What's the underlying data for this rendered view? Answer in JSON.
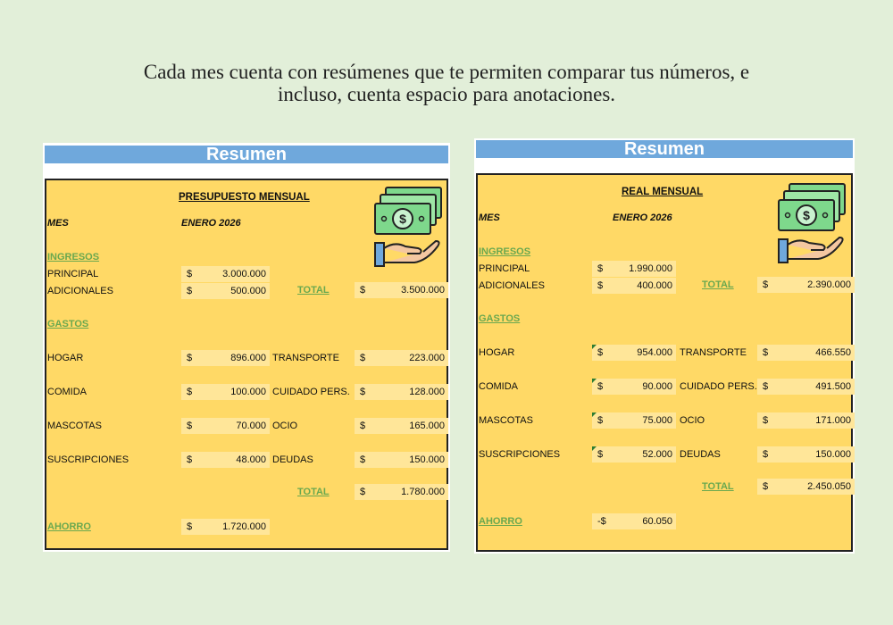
{
  "header": {
    "lines": [
      "Cada mes cuenta con resúmenes que te permiten comparar tus números, e",
      "incluso, cuenta espacio para anotaciones."
    ]
  },
  "panels": [
    {
      "title": "Resumen",
      "heading": "PRESUPUESTO MENSUAL",
      "month_label": "MES",
      "month": "ENERO 2026",
      "income_label": "INGRESOS",
      "income": [
        {
          "label": "PRINCIPAL",
          "currency": "$",
          "amount": "3.000.000"
        },
        {
          "label": "ADICIONALES",
          "currency": "$",
          "amount": "500.000"
        }
      ],
      "income_total": {
        "label": "TOTAL",
        "currency": "$",
        "amount": "3.500.000"
      },
      "expenses_label": "GASTOS",
      "expenses": [
        [
          {
            "label": "HOGAR",
            "currency": "$",
            "amount": "896.000"
          },
          {
            "label": "TRANSPORTE",
            "currency": "$",
            "amount": "223.000"
          }
        ],
        [
          {
            "label": "COMIDA",
            "currency": "$",
            "amount": "100.000"
          },
          {
            "label": "CUIDADO PERS.",
            "currency": "$",
            "amount": "128.000"
          }
        ],
        [
          {
            "label": "MASCOTAS",
            "currency": "$",
            "amount": "70.000"
          },
          {
            "label": "OCIO",
            "currency": "$",
            "amount": "165.000"
          }
        ],
        [
          {
            "label": "SUSCRIPCIONES",
            "currency": "$",
            "amount": "48.000"
          },
          {
            "label": "DEUDAS",
            "currency": "$",
            "amount": "150.000"
          }
        ]
      ],
      "expenses_total": {
        "label": "TOTAL",
        "currency": "$",
        "amount": "1.780.000"
      },
      "savings": {
        "label": "AHORRO",
        "currency": "$",
        "amount": "1.720.000"
      }
    },
    {
      "title": "Resumen",
      "heading": "REAL MENSUAL",
      "month_label": "MES",
      "month": "ENERO 2026",
      "income_label": "INGRESOS",
      "income": [
        {
          "label": "PRINCIPAL",
          "currency": "$",
          "amount": "1.990.000"
        },
        {
          "label": "ADICIONALES",
          "currency": "$",
          "amount": "400.000"
        }
      ],
      "income_total": {
        "label": "TOTAL",
        "currency": "$",
        "amount": "2.390.000"
      },
      "expenses_label": "GASTOS",
      "expenses": [
        [
          {
            "label": "HOGAR",
            "currency": "$",
            "amount": "954.000"
          },
          {
            "label": "TRANSPORTE",
            "currency": "$",
            "amount": "466.550"
          }
        ],
        [
          {
            "label": "COMIDA",
            "currency": "$",
            "amount": "90.000"
          },
          {
            "label": "CUIDADO PERS.",
            "currency": "$",
            "amount": "491.500"
          }
        ],
        [
          {
            "label": "MASCOTAS",
            "currency": "$",
            "amount": "75.000"
          },
          {
            "label": "OCIO",
            "currency": "$",
            "amount": "171.000"
          }
        ],
        [
          {
            "label": "SUSCRIPCIONES",
            "currency": "$",
            "amount": "52.000"
          },
          {
            "label": "DEUDAS",
            "currency": "$",
            "amount": "150.000"
          }
        ]
      ],
      "expenses_total": {
        "label": "TOTAL",
        "currency": "$",
        "amount": "2.450.050"
      },
      "savings": {
        "label": "AHORRO",
        "currency": "-$",
        "amount": "60.050"
      }
    }
  ]
}
